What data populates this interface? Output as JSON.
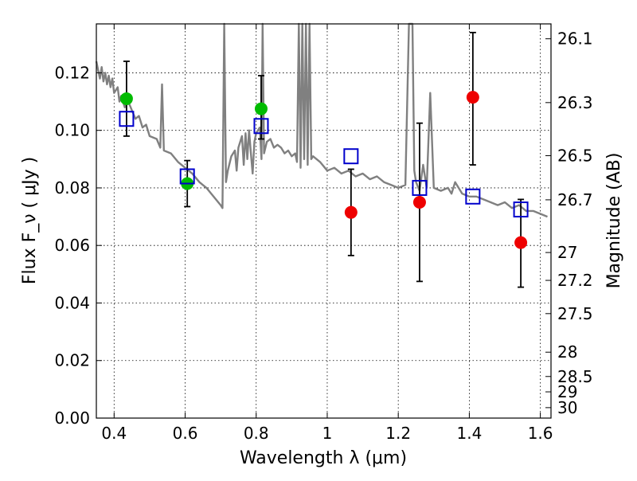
{
  "chart_data": {
    "type": "scatter",
    "title": "",
    "xlabel": "Wavelength  λ (μm)",
    "ylabel": "Flux  F_ν  ( μJy )",
    "y2label": "Magnitude (AB)",
    "xlim": [
      0.35,
      1.63
    ],
    "ylim": [
      0.0,
      0.137
    ],
    "x_ticks": [
      "0.4",
      "0.6",
      "0.8",
      "1",
      "1.2",
      "1.4",
      "1.6"
    ],
    "y_ticks": [
      "0.00",
      "0.02",
      "0.04",
      "0.06",
      "0.08",
      "0.10",
      "0.12"
    ],
    "mag_ticks": [
      "26.1",
      "26.3",
      "26.5",
      "26.7",
      "27",
      "27.2",
      "27.5",
      "28",
      "28.5",
      "29",
      "30"
    ],
    "grid": true,
    "colors": {
      "model": "#808080",
      "green_points": "#00bb00",
      "red_points": "#ee0000",
      "boxes": "#0000cc",
      "errorbars": "#000000"
    },
    "series": [
      {
        "marker": "circle",
        "color": "#00bb00",
        "points": [
          {
            "x": 0.435,
            "y": 0.111,
            "yerr_low": 0.098,
            "yerr_high": 0.124
          },
          {
            "x": 0.606,
            "y": 0.0815,
            "yerr_low": 0.0735,
            "yerr_high": 0.0895
          },
          {
            "x": 0.814,
            "y": 0.1075,
            "yerr_low": 0.097,
            "yerr_high": 0.119
          }
        ]
      },
      {
        "marker": "circle",
        "color": "#ee0000",
        "points": [
          {
            "x": 1.067,
            "y": 0.0715,
            "yerr_low": 0.0565,
            "yerr_high": 0.0865
          },
          {
            "x": 1.26,
            "y": 0.075,
            "yerr_low": 0.0475,
            "yerr_high": 0.1025
          },
          {
            "x": 1.41,
            "y": 0.1115,
            "yerr_low": 0.088,
            "yerr_high": 0.134
          },
          {
            "x": 1.545,
            "y": 0.061,
            "yerr_low": 0.0455,
            "yerr_high": 0.076
          }
        ]
      },
      {
        "marker": "open-square",
        "color": "#0000cc",
        "points": [
          {
            "x": 0.435,
            "y": 0.104
          },
          {
            "x": 0.606,
            "y": 0.084
          },
          {
            "x": 0.814,
            "y": 0.1015
          },
          {
            "x": 1.067,
            "y": 0.091
          },
          {
            "x": 1.26,
            "y": 0.08
          },
          {
            "x": 1.41,
            "y": 0.077
          },
          {
            "x": 1.545,
            "y": 0.0725
          }
        ]
      },
      {
        "type": "line",
        "color": "#808080",
        "points": [
          [
            0.35,
            0.124
          ],
          [
            0.355,
            0.121
          ],
          [
            0.36,
            0.118
          ],
          [
            0.365,
            0.122
          ],
          [
            0.37,
            0.117
          ],
          [
            0.375,
            0.12
          ],
          [
            0.38,
            0.116
          ],
          [
            0.385,
            0.119
          ],
          [
            0.39,
            0.115
          ],
          [
            0.395,
            0.118
          ],
          [
            0.4,
            0.113
          ],
          [
            0.41,
            0.115
          ],
          [
            0.415,
            0.11
          ],
          [
            0.42,
            0.112
          ],
          [
            0.43,
            0.108
          ],
          [
            0.44,
            0.11
          ],
          [
            0.45,
            0.107
          ],
          [
            0.46,
            0.104
          ],
          [
            0.47,
            0.105
          ],
          [
            0.48,
            0.101
          ],
          [
            0.49,
            0.102
          ],
          [
            0.5,
            0.098
          ],
          [
            0.52,
            0.097
          ],
          [
            0.53,
            0.094
          ],
          [
            0.535,
            0.116
          ],
          [
            0.54,
            0.093
          ],
          [
            0.56,
            0.092
          ],
          [
            0.58,
            0.089
          ],
          [
            0.6,
            0.087
          ],
          [
            0.62,
            0.085
          ],
          [
            0.64,
            0.082
          ],
          [
            0.66,
            0.08
          ],
          [
            0.68,
            0.077
          ],
          [
            0.7,
            0.074
          ],
          [
            0.705,
            0.073
          ],
          [
            0.71,
            0.137
          ],
          [
            0.715,
            0.082
          ],
          [
            0.72,
            0.086
          ],
          [
            0.73,
            0.091
          ],
          [
            0.74,
            0.093
          ],
          [
            0.745,
            0.086
          ],
          [
            0.75,
            0.094
          ],
          [
            0.76,
            0.098
          ],
          [
            0.765,
            0.088
          ],
          [
            0.77,
            0.099
          ],
          [
            0.775,
            0.09
          ],
          [
            0.78,
            0.1
          ],
          [
            0.785,
            0.092
          ],
          [
            0.79,
            0.085
          ],
          [
            0.795,
            0.096
          ],
          [
            0.8,
            0.099
          ],
          [
            0.81,
            0.101
          ],
          [
            0.815,
            0.09
          ],
          [
            0.818,
            0.137
          ],
          [
            0.822,
            0.092
          ],
          [
            0.83,
            0.096
          ],
          [
            0.84,
            0.097
          ],
          [
            0.85,
            0.094
          ],
          [
            0.86,
            0.095
          ],
          [
            0.87,
            0.094
          ],
          [
            0.88,
            0.092
          ],
          [
            0.89,
            0.093
          ],
          [
            0.9,
            0.091
          ],
          [
            0.91,
            0.092
          ],
          [
            0.915,
            0.089
          ],
          [
            0.92,
            0.137
          ],
          [
            0.925,
            0.087
          ],
          [
            0.93,
            0.137
          ],
          [
            0.935,
            0.09
          ],
          [
            0.94,
            0.137
          ],
          [
            0.945,
            0.088
          ],
          [
            0.95,
            0.137
          ],
          [
            0.955,
            0.09
          ],
          [
            0.96,
            0.091
          ],
          [
            0.98,
            0.089
          ],
          [
            1.0,
            0.086
          ],
          [
            1.02,
            0.087
          ],
          [
            1.04,
            0.085
          ],
          [
            1.06,
            0.086
          ],
          [
            1.08,
            0.084
          ],
          [
            1.1,
            0.085
          ],
          [
            1.12,
            0.083
          ],
          [
            1.14,
            0.084
          ],
          [
            1.16,
            0.082
          ],
          [
            1.18,
            0.081
          ],
          [
            1.2,
            0.08
          ],
          [
            1.22,
            0.081
          ],
          [
            1.23,
            0.137
          ],
          [
            1.24,
            0.137
          ],
          [
            1.245,
            0.086
          ],
          [
            1.25,
            0.082
          ],
          [
            1.26,
            0.079
          ],
          [
            1.27,
            0.088
          ],
          [
            1.28,
            0.08
          ],
          [
            1.29,
            0.113
          ],
          [
            1.3,
            0.08
          ],
          [
            1.32,
            0.079
          ],
          [
            1.34,
            0.08
          ],
          [
            1.35,
            0.078
          ],
          [
            1.36,
            0.082
          ],
          [
            1.38,
            0.078
          ],
          [
            1.4,
            0.077
          ],
          [
            1.42,
            0.077
          ],
          [
            1.44,
            0.076
          ],
          [
            1.46,
            0.075
          ],
          [
            1.48,
            0.074
          ],
          [
            1.5,
            0.075
          ],
          [
            1.52,
            0.073
          ],
          [
            1.54,
            0.074
          ],
          [
            1.56,
            0.072
          ],
          [
            1.58,
            0.072
          ],
          [
            1.6,
            0.071
          ],
          [
            1.62,
            0.07
          ]
        ]
      }
    ]
  }
}
